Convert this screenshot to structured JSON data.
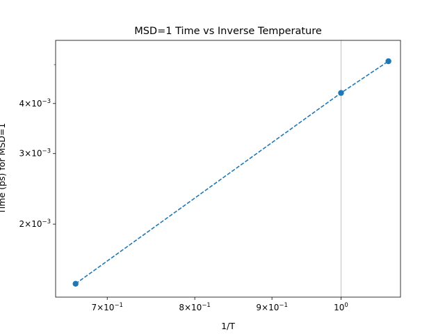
{
  "chart_data": {
    "type": "line",
    "title": "MSD=1 Time vs Inverse Temperature",
    "xlabel": "1/T",
    "ylabel": "Time (ps) for MSD=1",
    "xscale": "log",
    "yscale": "log",
    "xlim": [
      0.647,
      1.095
    ],
    "ylim": [
      0.001315,
      0.00575
    ],
    "grid": "vertical line at 1/T = 1",
    "series": [
      {
        "x": [
          0.667,
          1.0,
          1.075
        ],
        "y": [
          0.00142,
          0.00425,
          0.0051
        ],
        "color": "#1f77b4",
        "line_style": "dashed",
        "marker": "circle"
      }
    ],
    "x_ticks": [
      {
        "value": 0.7,
        "mantissa": "7",
        "base": "10",
        "exp": "−1"
      },
      {
        "value": 0.8,
        "mantissa": "8",
        "base": "10",
        "exp": "−1"
      },
      {
        "value": 0.9,
        "mantissa": "9",
        "base": "10",
        "exp": "−1"
      },
      {
        "value": 1.0,
        "mantissa": "",
        "base": "10",
        "exp": "0"
      }
    ],
    "y_ticks": [
      {
        "value": 0.002,
        "mantissa": "2",
        "base": "10",
        "exp": "−3"
      },
      {
        "value": 0.003,
        "mantissa": "3",
        "base": "10",
        "exp": "−3"
      },
      {
        "value": 0.004,
        "mantissa": "4",
        "base": "10",
        "exp": "−3"
      }
    ],
    "y_minor_ticks": [
      0.005
    ]
  }
}
